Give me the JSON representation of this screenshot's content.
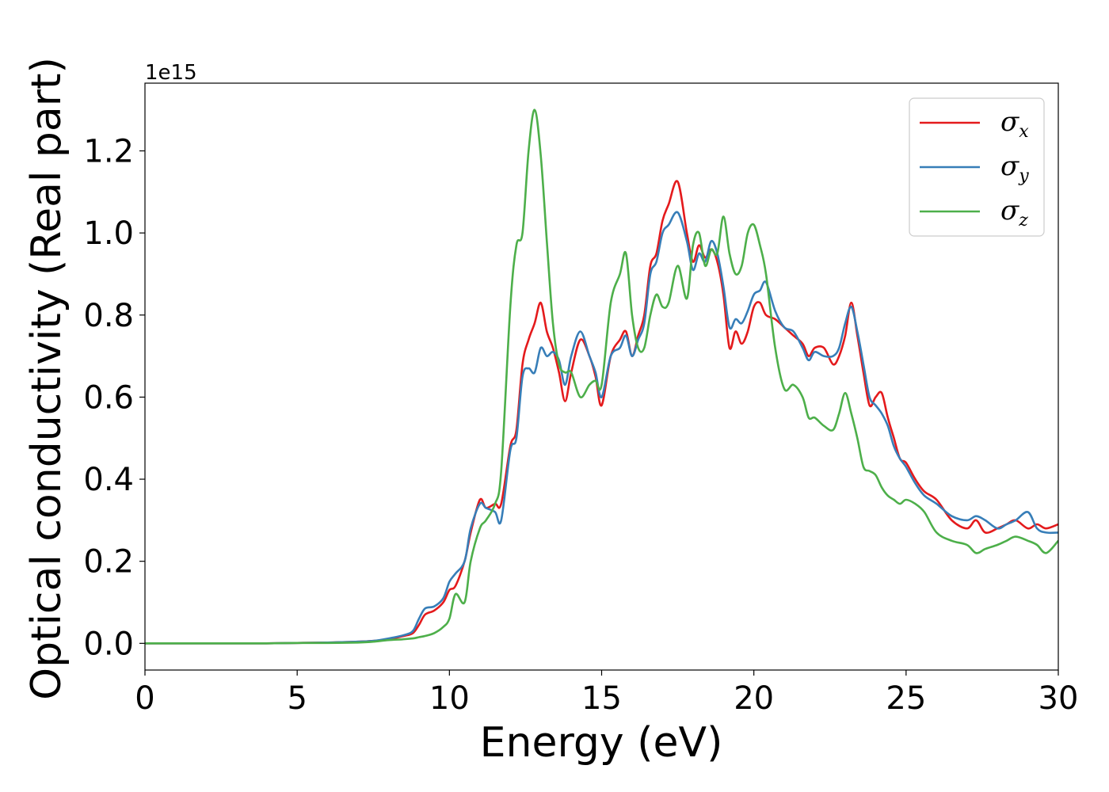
{
  "chart_data": {
    "type": "line",
    "xlabel": "Energy (eV)",
    "ylabel": "Optical conductivity (Real part)",
    "y_offset_text": "1e15",
    "xlim": [
      0,
      30
    ],
    "ylim": [
      -0.065,
      1.365
    ],
    "x_ticks": [
      0,
      5,
      10,
      15,
      20,
      25,
      30
    ],
    "x_tick_labels": [
      "0",
      "5",
      "10",
      "15",
      "20",
      "25",
      "30"
    ],
    "y_ticks": [
      0.0,
      0.2,
      0.4,
      0.6,
      0.8,
      1.0,
      1.2
    ],
    "y_tick_labels": [
      "0.0",
      "0.2",
      "0.4",
      "0.6",
      "0.8",
      "1.0",
      "1.2"
    ],
    "grid": false,
    "legend_position": "top-right",
    "x": [
      0,
      1,
      2,
      3,
      4,
      5,
      6,
      7,
      7.5,
      8,
      8.5,
      8.8,
      9,
      9.2,
      9.5,
      9.8,
      10,
      10.2,
      10.5,
      10.7,
      11,
      11.2,
      11.5,
      11.7,
      12,
      12.2,
      12.4,
      12.6,
      12.8,
      13,
      13.2,
      13.4,
      13.6,
      13.8,
      14,
      14.3,
      14.6,
      14.8,
      15,
      15.3,
      15.6,
      15.8,
      16,
      16.2,
      16.4,
      16.6,
      16.8,
      17,
      17.2,
      17.5,
      17.8,
      18,
      18.2,
      18.4,
      18.6,
      18.8,
      19,
      19.2,
      19.4,
      19.6,
      19.8,
      20,
      20.2,
      20.4,
      20.7,
      21,
      21.3,
      21.6,
      21.8,
      22,
      22.3,
      22.6,
      22.8,
      23,
      23.2,
      23.4,
      23.6,
      23.8,
      24,
      24.2,
      24.4,
      24.6,
      24.8,
      25,
      25.3,
      25.6,
      26,
      26.5,
      27,
      27.3,
      27.6,
      28,
      28.3,
      28.6,
      29,
      29.3,
      29.6,
      30
    ],
    "series": [
      {
        "name": "σx",
        "label_base": "σ",
        "label_sub": "x",
        "color": "#e41a1c",
        "values": [
          0,
          0,
          0,
          0,
          0,
          0.001,
          0.002,
          0.004,
          0.006,
          0.01,
          0.018,
          0.025,
          0.045,
          0.07,
          0.08,
          0.1,
          0.13,
          0.14,
          0.2,
          0.27,
          0.35,
          0.33,
          0.34,
          0.34,
          0.48,
          0.52,
          0.68,
          0.74,
          0.78,
          0.83,
          0.76,
          0.72,
          0.66,
          0.59,
          0.66,
          0.74,
          0.7,
          0.65,
          0.58,
          0.7,
          0.74,
          0.76,
          0.7,
          0.75,
          0.8,
          0.92,
          0.95,
          1.03,
          1.07,
          1.125,
          1.0,
          0.93,
          0.97,
          0.94,
          0.96,
          0.93,
          0.85,
          0.72,
          0.76,
          0.73,
          0.76,
          0.82,
          0.83,
          0.8,
          0.79,
          0.77,
          0.75,
          0.73,
          0.7,
          0.72,
          0.72,
          0.68,
          0.7,
          0.75,
          0.83,
          0.75,
          0.66,
          0.58,
          0.6,
          0.61,
          0.55,
          0.5,
          0.45,
          0.44,
          0.4,
          0.37,
          0.35,
          0.3,
          0.28,
          0.3,
          0.27,
          0.28,
          0.29,
          0.3,
          0.28,
          0.29,
          0.28,
          0.29
        ]
      },
      {
        "name": "σy",
        "label_base": "σ",
        "label_sub": "y",
        "color": "#377eb8",
        "values": [
          0,
          0,
          0,
          0,
          0,
          0.001,
          0.002,
          0.004,
          0.006,
          0.012,
          0.02,
          0.03,
          0.06,
          0.085,
          0.09,
          0.11,
          0.15,
          0.17,
          0.2,
          0.28,
          0.34,
          0.33,
          0.32,
          0.3,
          0.47,
          0.5,
          0.65,
          0.67,
          0.66,
          0.72,
          0.7,
          0.71,
          0.69,
          0.63,
          0.7,
          0.76,
          0.7,
          0.66,
          0.6,
          0.7,
          0.72,
          0.75,
          0.7,
          0.74,
          0.78,
          0.9,
          0.93,
          1.0,
          1.02,
          1.05,
          0.98,
          0.91,
          0.95,
          0.93,
          0.98,
          0.95,
          0.87,
          0.77,
          0.79,
          0.78,
          0.81,
          0.85,
          0.86,
          0.88,
          0.81,
          0.77,
          0.76,
          0.72,
          0.69,
          0.71,
          0.7,
          0.7,
          0.72,
          0.78,
          0.82,
          0.76,
          0.68,
          0.6,
          0.58,
          0.56,
          0.53,
          0.48,
          0.45,
          0.43,
          0.39,
          0.36,
          0.34,
          0.31,
          0.3,
          0.31,
          0.3,
          0.28,
          0.29,
          0.3,
          0.32,
          0.28,
          0.27,
          0.27
        ]
      },
      {
        "name": "σz",
        "label_base": "σ",
        "label_sub": "z",
        "color": "#4daf4a",
        "values": [
          0,
          0,
          0,
          0,
          0,
          0.001,
          0.001,
          0.002,
          0.004,
          0.008,
          0.01,
          0.012,
          0.015,
          0.018,
          0.025,
          0.04,
          0.06,
          0.12,
          0.1,
          0.2,
          0.28,
          0.3,
          0.34,
          0.42,
          0.82,
          0.97,
          1.0,
          1.2,
          1.3,
          1.19,
          0.98,
          0.78,
          0.68,
          0.66,
          0.66,
          0.6,
          0.63,
          0.64,
          0.63,
          0.83,
          0.9,
          0.95,
          0.8,
          0.72,
          0.72,
          0.8,
          0.85,
          0.82,
          0.83,
          0.92,
          0.84,
          0.97,
          1.0,
          0.92,
          0.96,
          0.95,
          1.04,
          0.95,
          0.9,
          0.92,
          1.0,
          1.02,
          0.97,
          0.9,
          0.72,
          0.62,
          0.63,
          0.6,
          0.55,
          0.55,
          0.53,
          0.52,
          0.56,
          0.61,
          0.56,
          0.5,
          0.43,
          0.42,
          0.41,
          0.38,
          0.36,
          0.35,
          0.34,
          0.35,
          0.34,
          0.32,
          0.27,
          0.25,
          0.24,
          0.22,
          0.23,
          0.24,
          0.25,
          0.26,
          0.25,
          0.24,
          0.22,
          0.25
        ]
      }
    ]
  }
}
